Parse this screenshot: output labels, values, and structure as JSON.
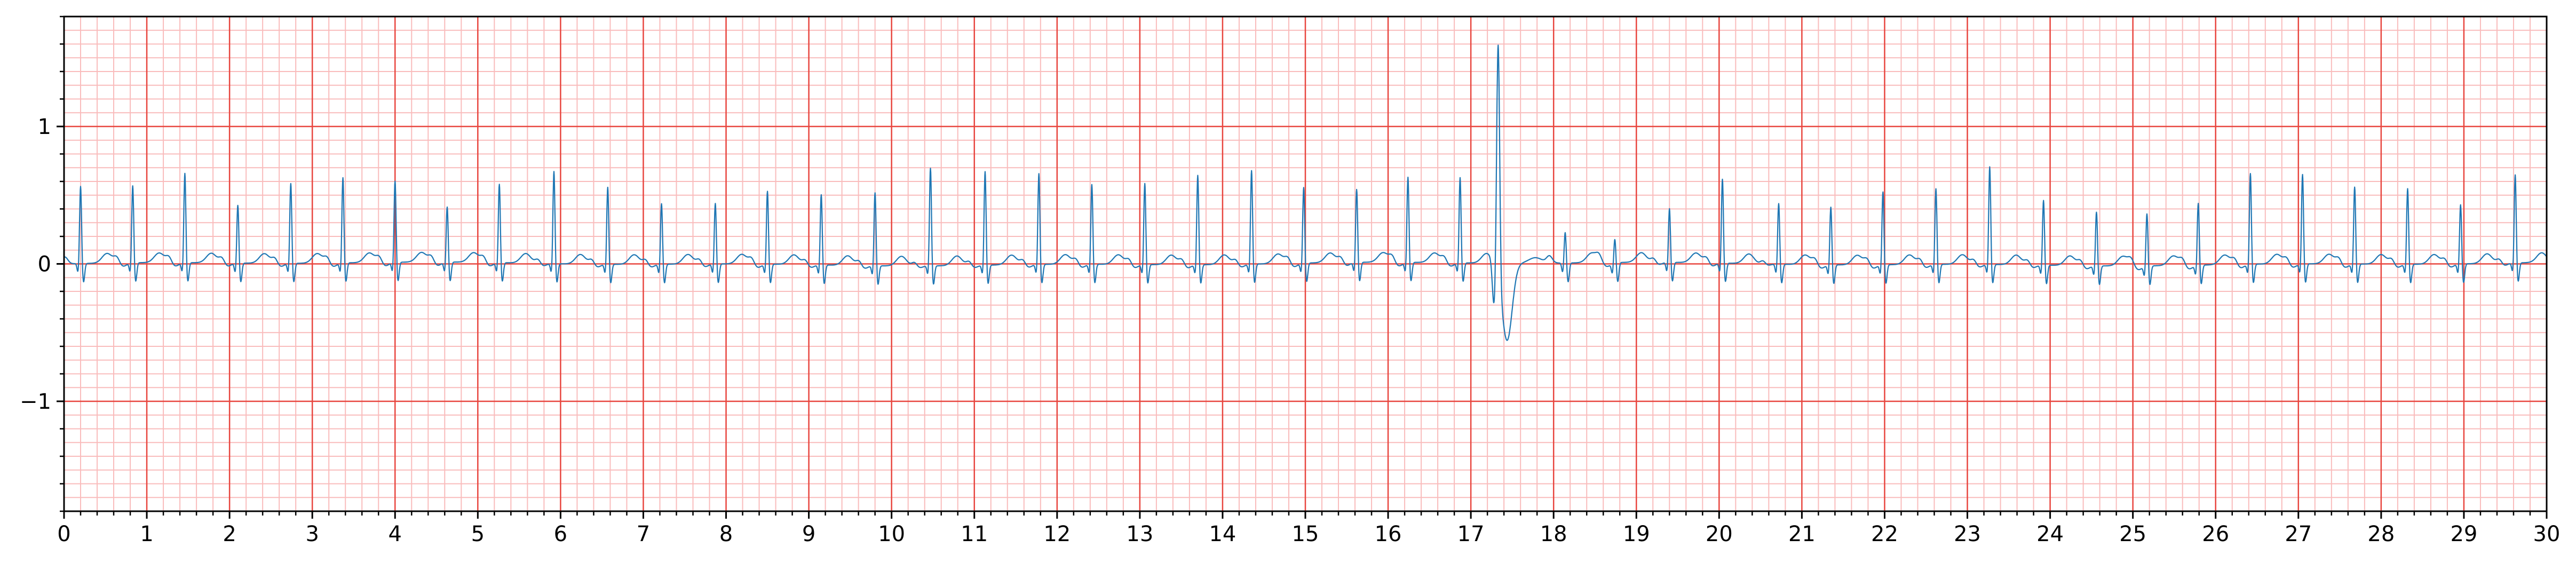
{
  "chart_data": {
    "type": "line",
    "title": "",
    "xlabel": "",
    "ylabel": "",
    "xlim": [
      0,
      30
    ],
    "ylim": [
      -1.8,
      1.8
    ],
    "x_ticks": [
      "0",
      "1",
      "2",
      "3",
      "4",
      "5",
      "6",
      "7",
      "8",
      "9",
      "10",
      "11",
      "12",
      "13",
      "14",
      "15",
      "16",
      "17",
      "18",
      "19",
      "20",
      "21",
      "22",
      "23",
      "24",
      "25",
      "26",
      "27",
      "28",
      "29",
      "30"
    ],
    "y_ticks": [
      {
        "value": 1,
        "label": "1"
      },
      {
        "value": 0,
        "label": "0"
      },
      {
        "value": -1,
        "label": "−1"
      }
    ],
    "grid": {
      "major": {
        "x_step": 1,
        "y_step": 1,
        "color": "#e8463f"
      },
      "minor": {
        "x_step": 0.2,
        "y_step": 0.1,
        "color": "#f9bcbc"
      }
    },
    "series": [
      {
        "color": "#1f77b4",
        "beats": [
          {
            "t": 0.2,
            "amp": 0.57
          },
          {
            "t": 0.83,
            "amp": 0.57
          },
          {
            "t": 1.46,
            "amp": 0.66
          },
          {
            "t": 2.1,
            "amp": 0.43
          },
          {
            "t": 2.74,
            "amp": 0.59
          },
          {
            "t": 3.37,
            "amp": 0.63
          },
          {
            "t": 4.0,
            "amp": 0.6
          },
          {
            "t": 4.63,
            "amp": 0.41
          },
          {
            "t": 5.26,
            "amp": 0.58
          },
          {
            "t": 5.92,
            "amp": 0.68
          },
          {
            "t": 6.57,
            "amp": 0.57
          },
          {
            "t": 7.22,
            "amp": 0.45
          },
          {
            "t": 7.87,
            "amp": 0.45
          },
          {
            "t": 8.5,
            "amp": 0.54
          },
          {
            "t": 9.15,
            "amp": 0.52
          },
          {
            "t": 9.8,
            "amp": 0.54
          },
          {
            "t": 10.47,
            "amp": 0.72
          },
          {
            "t": 11.13,
            "amp": 0.69
          },
          {
            "t": 11.78,
            "amp": 0.67
          },
          {
            "t": 12.42,
            "amp": 0.59
          },
          {
            "t": 13.06,
            "amp": 0.6
          },
          {
            "t": 13.7,
            "amp": 0.66
          },
          {
            "t": 14.35,
            "amp": 0.69
          },
          {
            "t": 14.98,
            "amp": 0.56
          },
          {
            "t": 15.62,
            "amp": 0.54
          },
          {
            "t": 16.24,
            "amp": 0.63
          },
          {
            "t": 16.87,
            "amp": 0.63
          },
          {
            "t": 17.33,
            "amp": 1.72,
            "ectopic": true
          },
          {
            "t": 18.14,
            "amp": 0.23
          },
          {
            "t": 18.74,
            "amp": 0.18
          },
          {
            "t": 19.4,
            "amp": 0.4
          },
          {
            "t": 20.04,
            "amp": 0.62
          },
          {
            "t": 20.72,
            "amp": 0.45
          },
          {
            "t": 21.35,
            "amp": 0.43
          },
          {
            "t": 21.98,
            "amp": 0.54
          },
          {
            "t": 22.62,
            "amp": 0.56
          },
          {
            "t": 23.27,
            "amp": 0.72
          },
          {
            "t": 23.92,
            "amp": 0.48
          },
          {
            "t": 24.56,
            "amp": 0.4
          },
          {
            "t": 25.17,
            "amp": 0.39
          },
          {
            "t": 25.79,
            "amp": 0.46
          },
          {
            "t": 26.42,
            "amp": 0.67
          },
          {
            "t": 27.05,
            "amp": 0.66
          },
          {
            "t": 27.68,
            "amp": 0.57
          },
          {
            "t": 28.32,
            "amp": 0.56
          },
          {
            "t": 28.96,
            "amp": 0.44
          },
          {
            "t": 29.62,
            "amp": 0.65
          }
        ]
      }
    ]
  }
}
